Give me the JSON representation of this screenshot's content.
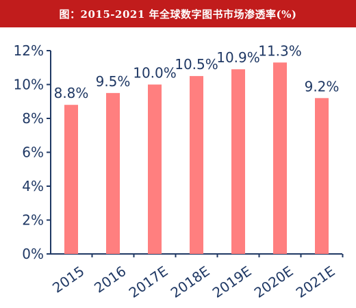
{
  "title": "图：2015-2021 年全球数字图书市场渗透率(%)",
  "colors": {
    "title_bg": "#c11c1c",
    "bar": "#ff7f7f",
    "axis": "#1f3864"
  },
  "chart_data": {
    "type": "bar",
    "categories": [
      "2015",
      "2016",
      "2017E",
      "2018E",
      "2019E",
      "2020E",
      "2021E"
    ],
    "values": [
      8.8,
      9.5,
      10.0,
      10.5,
      10.9,
      11.3,
      9.2
    ],
    "data_labels": [
      "8.8%",
      "9.5%",
      "10.0%",
      "10.5%",
      "10.9%",
      "11.3%",
      "9.2%"
    ],
    "yticks": [
      "0%",
      "2%",
      "4%",
      "6%",
      "8%",
      "10%",
      "12%"
    ],
    "ylim": [
      0,
      12
    ],
    "grid": false,
    "legend": "none"
  }
}
